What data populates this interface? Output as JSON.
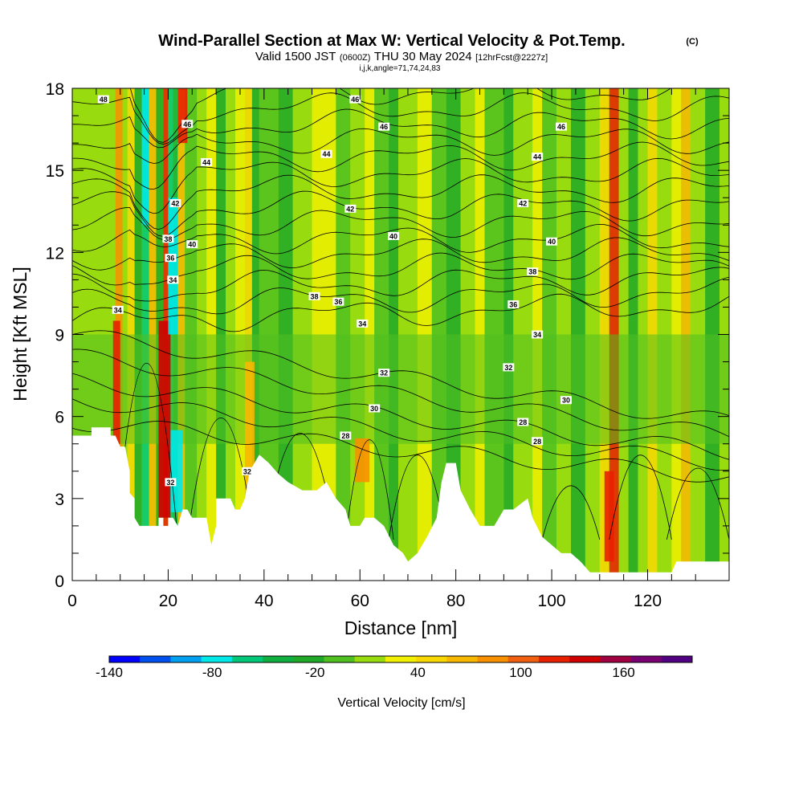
{
  "title": {
    "main": "Wind-Parallel Section at Max W: Vertical Velocity & Pot.Temp.",
    "copyright": "(C)",
    "valid_prefix": "Valid 1500 JST",
    "valid_utc": "(0600Z)",
    "valid_date": "THU 30 May 2024",
    "forecast": "[12hrFcst@2227z]",
    "indices": "i,j,k,angle=71,74,24,83"
  },
  "chart_data": {
    "type": "heatmap",
    "xlabel": "Distance [nm]",
    "ylabel": "Height [Kft MSL]",
    "xlim": [
      0,
      137
    ],
    "ylim": [
      0,
      18
    ],
    "x_ticks": [
      0,
      20,
      40,
      60,
      80,
      100,
      120
    ],
    "y_ticks": [
      0,
      3,
      6,
      9,
      12,
      15,
      18
    ],
    "colorbar": {
      "title": "Vertical Velocity [cm/s]",
      "range": [
        -140,
        200
      ],
      "tick_values": [
        -140,
        -80,
        -20,
        40,
        100,
        160
      ],
      "tick_labels": [
        "-140",
        "-80",
        "-20",
        "40",
        "100",
        "160"
      ],
      "colors": [
        "#0000ff",
        "#0050f0",
        "#00a0f0",
        "#00e8e8",
        "#00c878",
        "#10b040",
        "#20a828",
        "#50c020",
        "#98dc10",
        "#f0f000",
        "#f8d800",
        "#f8b800",
        "#f89000",
        "#f06010",
        "#e82000",
        "#d00000",
        "#a00040",
        "#780070",
        "#500080"
      ]
    },
    "terrain_kft": [
      [
        0,
        5.3
      ],
      [
        4,
        5.3
      ],
      [
        4,
        5.6
      ],
      [
        8,
        5.6
      ],
      [
        8,
        5.3
      ],
      [
        9,
        5.3
      ],
      [
        10,
        4.9
      ],
      [
        11,
        4.9
      ],
      [
        12,
        4.0
      ],
      [
        12,
        3.2
      ],
      [
        13,
        3.0
      ],
      [
        13,
        2.3
      ],
      [
        14,
        2.0
      ],
      [
        18,
        2.0
      ],
      [
        18,
        2.3
      ],
      [
        19,
        2.3
      ],
      [
        19,
        2.0
      ],
      [
        20,
        2.0
      ],
      [
        20,
        2.3
      ],
      [
        21,
        2.3
      ],
      [
        22,
        2.0
      ],
      [
        23,
        2.6
      ],
      [
        24,
        2.6
      ],
      [
        25,
        2.3
      ],
      [
        28,
        2.3
      ],
      [
        29,
        1.3
      ],
      [
        30,
        2.0
      ],
      [
        30,
        3.0
      ],
      [
        33,
        3.0
      ],
      [
        34,
        2.6
      ],
      [
        35,
        2.6
      ],
      [
        36,
        3.0
      ],
      [
        37,
        4.0
      ],
      [
        39,
        4.6
      ],
      [
        41,
        4.3
      ],
      [
        43,
        3.9
      ],
      [
        45,
        3.6
      ],
      [
        48,
        3.3
      ],
      [
        51,
        3.3
      ],
      [
        53,
        3.6
      ],
      [
        55,
        3.0
      ],
      [
        57,
        2.6
      ],
      [
        58,
        2.0
      ],
      [
        60,
        2.0
      ],
      [
        61,
        2.3
      ],
      [
        63,
        2.3
      ],
      [
        65,
        2.0
      ],
      [
        67,
        1.3
      ],
      [
        69,
        1.0
      ],
      [
        70,
        0.7
      ],
      [
        72,
        1.0
      ],
      [
        74,
        1.6
      ],
      [
        76,
        2.3
      ],
      [
        77,
        3.6
      ],
      [
        78,
        4.3
      ],
      [
        80,
        4.3
      ],
      [
        81,
        3.3
      ],
      [
        83,
        2.6
      ],
      [
        85,
        2.0
      ],
      [
        88,
        2.0
      ],
      [
        89,
        2.3
      ],
      [
        90,
        2.6
      ],
      [
        92,
        2.6
      ],
      [
        95,
        3.0
      ],
      [
        96,
        2.3
      ],
      [
        98,
        1.6
      ],
      [
        100,
        1.3
      ],
      [
        102,
        1.0
      ],
      [
        104,
        1.0
      ],
      [
        106,
        0.7
      ],
      [
        108,
        0.3
      ],
      [
        115,
        0.3
      ],
      [
        118,
        0.3
      ],
      [
        125,
        0.3
      ],
      [
        126,
        0.7
      ],
      [
        137,
        0.7
      ]
    ],
    "contour_labels": [
      {
        "text": "48",
        "x": 6.5,
        "y": 17.6
      },
      {
        "text": "46",
        "x": 59,
        "y": 17.6
      },
      {
        "text": "46",
        "x": 24,
        "y": 16.7
      },
      {
        "text": "46",
        "x": 65,
        "y": 16.6
      },
      {
        "text": "46",
        "x": 102,
        "y": 16.6
      },
      {
        "text": "44",
        "x": 28,
        "y": 15.3
      },
      {
        "text": "44",
        "x": 53,
        "y": 15.6
      },
      {
        "text": "44",
        "x": 97,
        "y": 15.5
      },
      {
        "text": "42",
        "x": 21.5,
        "y": 13.8
      },
      {
        "text": "42",
        "x": 58,
        "y": 13.6
      },
      {
        "text": "42",
        "x": 94,
        "y": 13.8
      },
      {
        "text": "38",
        "x": 20,
        "y": 12.5
      },
      {
        "text": "40",
        "x": 25,
        "y": 12.3
      },
      {
        "text": "40",
        "x": 67,
        "y": 12.6
      },
      {
        "text": "40",
        "x": 100,
        "y": 12.4
      },
      {
        "text": "36",
        "x": 20.5,
        "y": 11.8
      },
      {
        "text": "38",
        "x": 96,
        "y": 11.3
      },
      {
        "text": "34",
        "x": 21,
        "y": 11.0
      },
      {
        "text": "38",
        "x": 50.5,
        "y": 10.4
      },
      {
        "text": "36",
        "x": 55.5,
        "y": 10.2
      },
      {
        "text": "36",
        "x": 92,
        "y": 10.1
      },
      {
        "text": "34",
        "x": 9.5,
        "y": 9.9
      },
      {
        "text": "34",
        "x": 60.5,
        "y": 9.4
      },
      {
        "text": "34",
        "x": 97,
        "y": 9.0
      },
      {
        "text": "32",
        "x": 91,
        "y": 7.8
      },
      {
        "text": "32",
        "x": 65,
        "y": 7.6
      },
      {
        "text": "30",
        "x": 103,
        "y": 6.6
      },
      {
        "text": "30",
        "x": 63,
        "y": 6.3
      },
      {
        "text": "28",
        "x": 94,
        "y": 5.8
      },
      {
        "text": "28",
        "x": 57,
        "y": 5.3
      },
      {
        "text": "28",
        "x": 97,
        "y": 5.1
      },
      {
        "text": "32",
        "x": 36.5,
        "y": 4.0
      },
      {
        "text": "32",
        "x": 20.5,
        "y": 3.6
      }
    ]
  }
}
